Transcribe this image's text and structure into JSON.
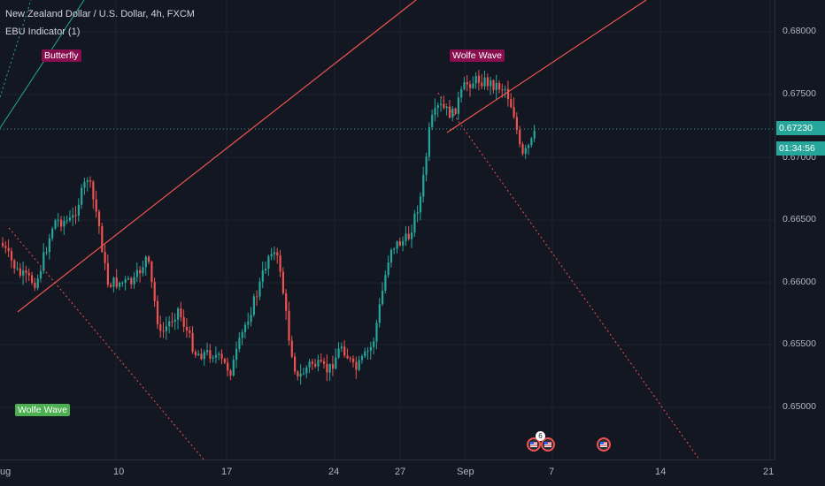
{
  "header": {
    "symbol_title": "New Zealand Dollar / U.S. Dollar, 4h, FXCM",
    "indicator": "EBU Indicator (1)"
  },
  "price_axis": {
    "ticks": [
      "0.68000",
      "0.67500",
      "0.67000",
      "0.66500",
      "0.66000",
      "0.65500",
      "0.65000"
    ],
    "current_price": "0.67230",
    "countdown": "01:34:56"
  },
  "time_axis": {
    "ticks": [
      "ug",
      "10",
      "17",
      "24",
      "27",
      "Sep",
      "7",
      "14",
      "21"
    ]
  },
  "annotations": {
    "butterfly": "Butterfly",
    "wolfe_top": "Wolfe Wave",
    "wolfe_bottom": "Wolfe Wave"
  },
  "events": {
    "badge_count": "6"
  },
  "colors": {
    "background": "#131722",
    "up": "#26a69a",
    "down": "#ef5350",
    "wolfe_label_top": "#880e4f",
    "wolfe_label_bottom": "#4caf50",
    "price_tag": "#26a69a",
    "countdown_tag": "#26a69a"
  },
  "icons": [
    "us-flag-icon",
    "us-flag-icon",
    "us-flag-icon"
  ]
}
